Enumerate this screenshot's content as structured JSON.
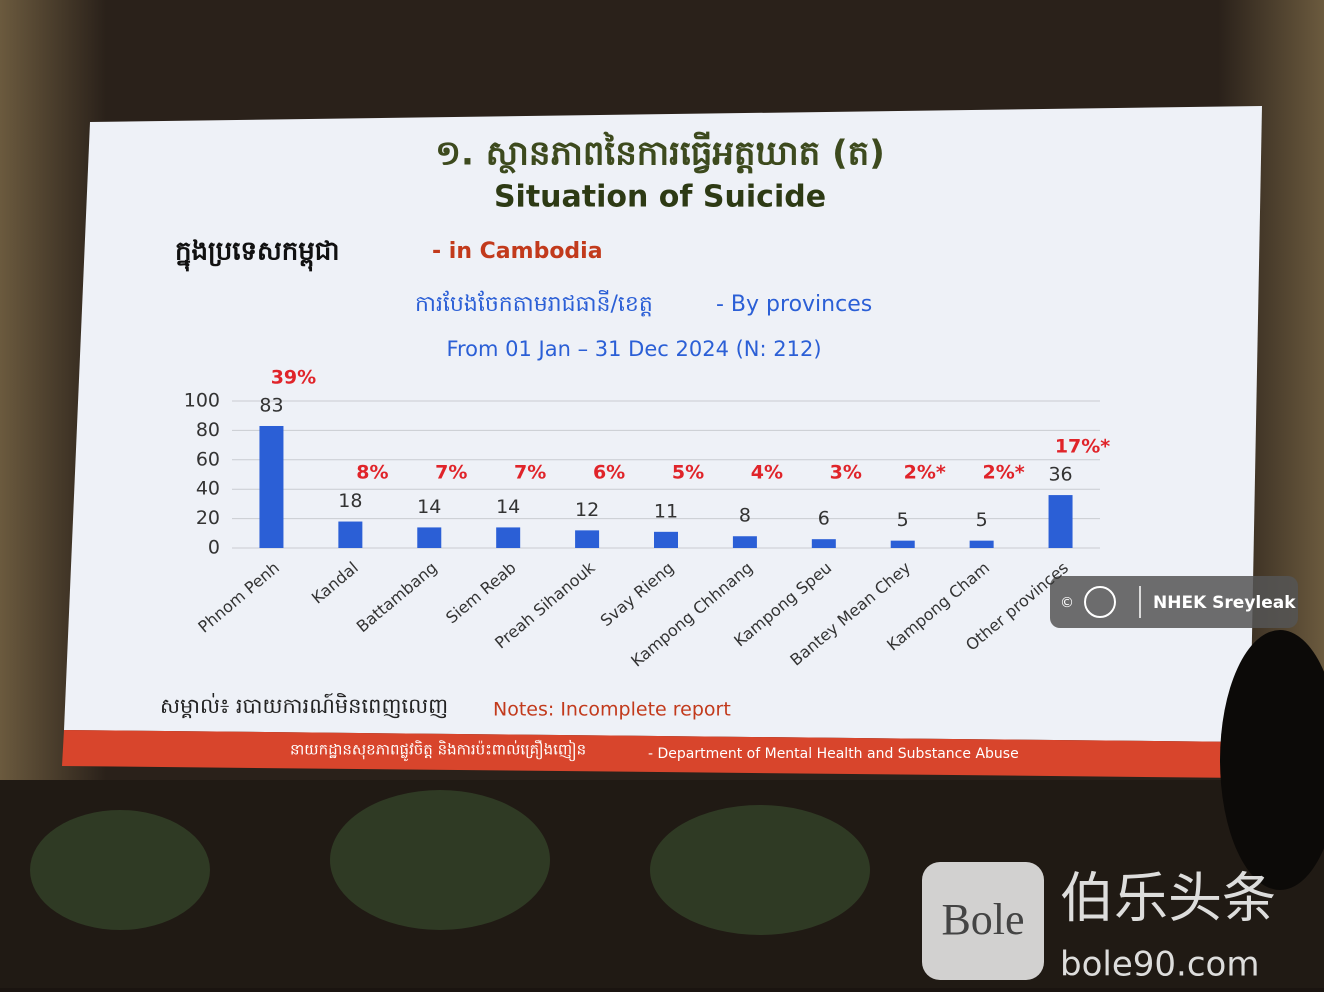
{
  "slide": {
    "title_km": "១. ស្ថានភាពនៃការធ្វើអត្តឃាត (ត)",
    "title_en": "Situation of Suicide",
    "region_km": "ក្នុងប្រទេសកម្ពុជា",
    "region_en": "- in Cambodia",
    "note_km": "សម្គាល់៖ របាយការណ៍មិនពេញលេញ",
    "note_en": "Notes: Incomplete report",
    "footer_km": "នាយកដ្ឋានសុខភាពផ្លូវចិត្ត និងការប៉ះពាល់គ្រឿងញៀន",
    "footer_en": "- Department of Mental Health and Substance Abuse",
    "credit_mark": "©",
    "credit": "NHEK Sreyleak",
    "watermark": {
      "logo": "Bole",
      "name": "伯乐头条",
      "site": "bole90.com"
    }
  },
  "chart_data": {
    "type": "bar",
    "title_km": "ការបែងចែកតាមរាជធានី/ខេត្ត",
    "title_en": "- By provinces",
    "subtitle": "From 01 Jan – 31 Dec 2024 (N: 212)",
    "categories": [
      "Phnom Penh",
      "Kandal",
      "Battambang",
      "Siem Reab",
      "Preah Sihanouk",
      "Svay Rieng",
      "Kampong Chhnang",
      "Kampong Speu",
      "Bantey Mean Chey",
      "Kampong Cham",
      "Other provinces"
    ],
    "values": [
      83,
      18,
      14,
      14,
      12,
      11,
      8,
      6,
      5,
      5,
      36
    ],
    "shares": {
      "values": [
        39,
        8,
        7,
        7,
        6,
        5,
        4,
        3,
        2,
        2,
        17
      ],
      "value_labels": [
        "39%",
        "8%",
        "7%",
        "7%",
        "6%",
        "5%",
        "4%",
        "3%",
        "2%*",
        "2%*",
        "17%*"
      ],
      "color": "#e0242a"
    },
    "color": "#2b5fd6",
    "ylim": [
      0,
      100
    ],
    "yticks": [
      0,
      20,
      40,
      60,
      80,
      100
    ],
    "grid": true
  }
}
